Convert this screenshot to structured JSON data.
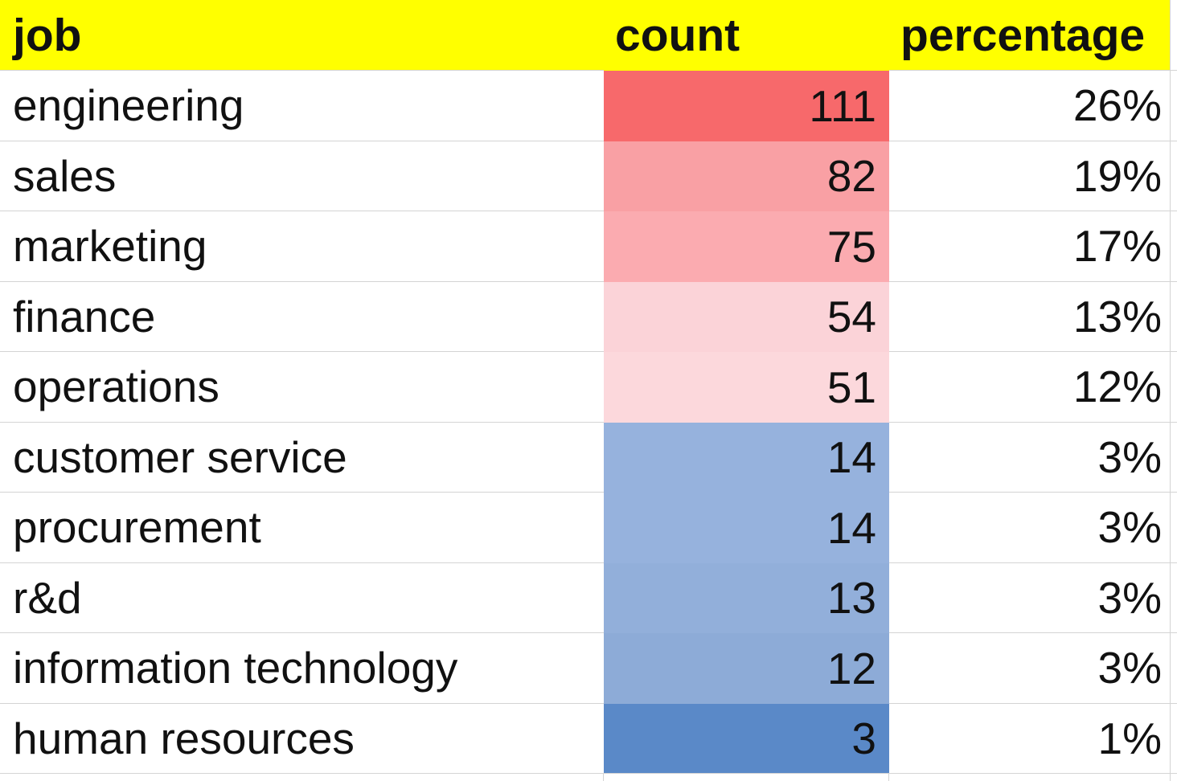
{
  "table": {
    "header_bg": "#FFFF00",
    "gridline_color": "#D4D4D4",
    "columns": [
      {
        "label": "job"
      },
      {
        "label": "count"
      },
      {
        "label": "percentage"
      }
    ],
    "rows": [
      {
        "job": "engineering",
        "count": "111",
        "percentage": "26%",
        "count_fill": "#F7696B"
      },
      {
        "job": "sales",
        "count": "82",
        "percentage": "19%",
        "count_fill": "#F9A0A4"
      },
      {
        "job": "marketing",
        "count": "75",
        "percentage": "17%",
        "count_fill": "#FBABB0"
      },
      {
        "job": "finance",
        "count": "54",
        "percentage": "13%",
        "count_fill": "#FBD3D8"
      },
      {
        "job": "operations",
        "count": "51",
        "percentage": "12%",
        "count_fill": "#FCD8DC"
      },
      {
        "job": "customer service",
        "count": "14",
        "percentage": "3%",
        "count_fill": "#96B2DD"
      },
      {
        "job": "procurement",
        "count": "14",
        "percentage": "3%",
        "count_fill": "#96B2DD"
      },
      {
        "job": "r&d",
        "count": "13",
        "percentage": "3%",
        "count_fill": "#92AFDA"
      },
      {
        "job": "information technology",
        "count": "12",
        "percentage": "3%",
        "count_fill": "#8DABD7"
      },
      {
        "job": "human resources",
        "count": "3",
        "percentage": "1%",
        "count_fill": "#5A89C8"
      }
    ]
  },
  "chart_data": {
    "type": "table",
    "title": "",
    "columns": [
      "job",
      "count",
      "percentage"
    ],
    "categories": [
      "engineering",
      "sales",
      "marketing",
      "finance",
      "operations",
      "customer service",
      "procurement",
      "r&d",
      "information technology",
      "human resources"
    ],
    "series": [
      {
        "name": "count",
        "values": [
          111,
          82,
          75,
          54,
          51,
          14,
          14,
          13,
          12,
          3
        ]
      },
      {
        "name": "percentage",
        "values": [
          26,
          19,
          17,
          13,
          12,
          3,
          3,
          3,
          3,
          1
        ]
      }
    ],
    "layout_hints": {
      "header_fill": "#FFFF00",
      "conditional_format": "red-white-blue 3-color scale on count column (high=red #F7696B, mid=white, low=blue #5A89C8)"
    }
  }
}
